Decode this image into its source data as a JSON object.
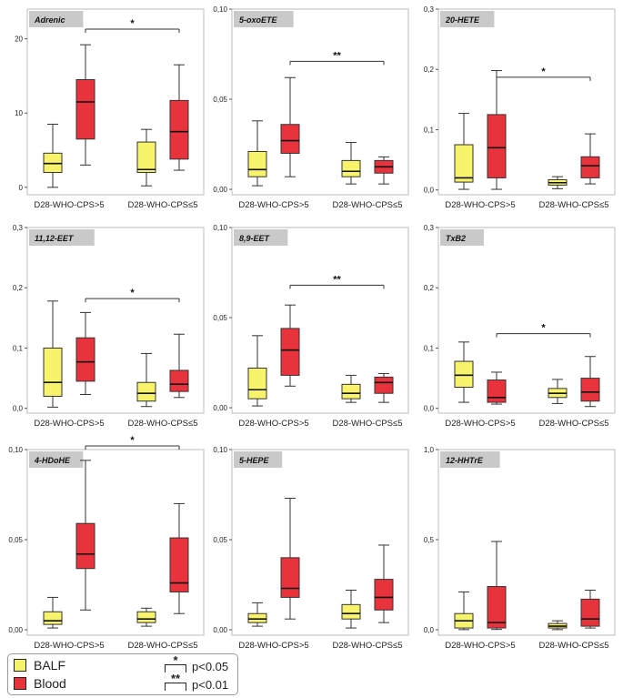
{
  "colors": {
    "balf": "#f7f36a",
    "blood": "#e8323c",
    "frame": "#bdbdbd",
    "tag": "#c9c9c9"
  },
  "legend": {
    "balf_label": "BALF",
    "blood_label": "Blood",
    "sig1_stars": "*",
    "sig1_label": "p<0.05",
    "sig2_stars": "**",
    "sig2_label": "p<0.01"
  },
  "chart_data": [
    {
      "type": "box",
      "title": "Adrenic",
      "categories": [
        "D28-WHO-CPS>5",
        "D28-WHO-CPS≤5"
      ],
      "ylim": [
        -1,
        24
      ],
      "yticks": [
        0,
        10,
        20
      ],
      "ytick_labels": [
        "0",
        "10",
        "20"
      ],
      "series": [
        {
          "name": "BALF",
          "boxes": [
            {
              "min": 0,
              "q1": 2,
              "median": 3.2,
              "q3": 4.6,
              "max": 8.5
            },
            {
              "min": 0.2,
              "q1": 2,
              "median": 2.4,
              "q3": 6.1,
              "max": 7.8
            }
          ]
        },
        {
          "name": "Blood",
          "boxes": [
            {
              "min": 3,
              "q1": 6.5,
              "median": 11.5,
              "q3": 14.5,
              "max": 19.2
            },
            {
              "min": 2.3,
              "q1": 3.8,
              "median": 7.5,
              "q3": 11.7,
              "max": 16.5
            }
          ]
        }
      ],
      "significance": [
        {
          "from": 1,
          "to": 3,
          "y": 21.3,
          "label": "*"
        }
      ]
    },
    {
      "type": "box",
      "title": "5-oxoETE",
      "categories": [
        "D28-WHO-CPS>5",
        "D28-WHO-CPS≤5"
      ],
      "ylim": [
        -0.003,
        0.1
      ],
      "yticks": [
        0,
        0.05,
        0.1
      ],
      "ytick_labels": [
        "0,00",
        "0,05",
        "0,10"
      ],
      "series": [
        {
          "name": "BALF",
          "boxes": [
            {
              "min": 0.002,
              "q1": 0.007,
              "median": 0.011,
              "q3": 0.021,
              "max": 0.038
            },
            {
              "min": 0.003,
              "q1": 0.007,
              "median": 0.01,
              "q3": 0.016,
              "max": 0.026
            }
          ]
        },
        {
          "name": "Blood",
          "boxes": [
            {
              "min": 0.007,
              "q1": 0.02,
              "median": 0.027,
              "q3": 0.036,
              "max": 0.062
            },
            {
              "min": 0.003,
              "q1": 0.009,
              "median": 0.0125,
              "q3": 0.016,
              "max": 0.018
            }
          ]
        }
      ],
      "significance": [
        {
          "from": 1,
          "to": 3,
          "y": 0.071,
          "label": "**"
        }
      ]
    },
    {
      "type": "box",
      "title": "20-HETE",
      "categories": [
        "D28-WHO-CPS>5",
        "D28-WHO-CPS≤5"
      ],
      "ylim": [
        -0.008,
        0.3
      ],
      "yticks": [
        0,
        0.1,
        0.2,
        0.3
      ],
      "ytick_labels": [
        "0,0",
        "0,1",
        "0,2",
        "0,3"
      ],
      "series": [
        {
          "name": "BALF",
          "boxes": [
            {
              "min": 0.001,
              "q1": 0.013,
              "median": 0.02,
              "q3": 0.075,
              "max": 0.127
            },
            {
              "min": 0.002,
              "q1": 0.008,
              "median": 0.012,
              "q3": 0.017,
              "max": 0.022
            }
          ]
        },
        {
          "name": "Blood",
          "boxes": [
            {
              "min": 0.001,
              "q1": 0.02,
              "median": 0.07,
              "q3": 0.125,
              "max": 0.198
            },
            {
              "min": 0.01,
              "q1": 0.02,
              "median": 0.04,
              "q3": 0.055,
              "max": 0.093
            }
          ]
        }
      ],
      "significance": [
        {
          "from": 1,
          "to": 3,
          "y": 0.187,
          "label": "*"
        }
      ]
    },
    {
      "type": "box",
      "title": "11,12-EET",
      "categories": [
        "D28-WHO-CPS>5",
        "D28-WHO-CPS≤5"
      ],
      "ylim": [
        -0.008,
        0.3
      ],
      "yticks": [
        0,
        0.1,
        0.2,
        0.3
      ],
      "ytick_labels": [
        "0,0",
        "0,1",
        "0,2",
        "0,3"
      ],
      "series": [
        {
          "name": "BALF",
          "boxes": [
            {
              "min": 0.002,
              "q1": 0.02,
              "median": 0.043,
              "q3": 0.1,
              "max": 0.178
            },
            {
              "min": 0.003,
              "q1": 0.012,
              "median": 0.025,
              "q3": 0.043,
              "max": 0.091
            }
          ]
        },
        {
          "name": "Blood",
          "boxes": [
            {
              "min": 0.023,
              "q1": 0.045,
              "median": 0.077,
              "q3": 0.117,
              "max": 0.159
            },
            {
              "min": 0.018,
              "q1": 0.028,
              "median": 0.04,
              "q3": 0.063,
              "max": 0.123
            }
          ]
        }
      ],
      "significance": [
        {
          "from": 1,
          "to": 3,
          "y": 0.182,
          "label": "*"
        }
      ]
    },
    {
      "type": "box",
      "title": "8,9-EET",
      "categories": [
        "D28-WHO-CPS>5",
        "D28-WHO-CPS≤5"
      ],
      "ylim": [
        -0.003,
        0.1
      ],
      "yticks": [
        0,
        0.05,
        0.1
      ],
      "ytick_labels": [
        "0,00",
        "0,05",
        "0,10"
      ],
      "series": [
        {
          "name": "BALF",
          "boxes": [
            {
              "min": 0.001,
              "q1": 0.005,
              "median": 0.01,
              "q3": 0.022,
              "max": 0.04
            },
            {
              "min": 0.003,
              "q1": 0.005,
              "median": 0.008,
              "q3": 0.013,
              "max": 0.018
            }
          ]
        },
        {
          "name": "Blood",
          "boxes": [
            {
              "min": 0.012,
              "q1": 0.018,
              "median": 0.032,
              "q3": 0.044,
              "max": 0.057
            },
            {
              "min": 0.003,
              "q1": 0.008,
              "median": 0.014,
              "q3": 0.017,
              "max": 0.019
            }
          ]
        }
      ],
      "significance": [
        {
          "from": 1,
          "to": 3,
          "y": 0.068,
          "label": "**"
        }
      ]
    },
    {
      "type": "box",
      "title": "TxB2",
      "categories": [
        "D28-WHO-CPS>5",
        "D28-WHO-CPS≤5"
      ],
      "ylim": [
        -0.008,
        0.3
      ],
      "yticks": [
        0,
        0.1,
        0.2,
        0.3
      ],
      "ytick_labels": [
        "0,0",
        "0,1",
        "0,2",
        "0,3"
      ],
      "series": [
        {
          "name": "BALF",
          "boxes": [
            {
              "min": 0.01,
              "q1": 0.035,
              "median": 0.055,
              "q3": 0.078,
              "max": 0.11
            },
            {
              "min": 0.008,
              "q1": 0.018,
              "median": 0.025,
              "q3": 0.033,
              "max": 0.048
            }
          ]
        },
        {
          "name": "Blood",
          "boxes": [
            {
              "min": 0.007,
              "q1": 0.01,
              "median": 0.018,
              "q3": 0.047,
              "max": 0.06
            },
            {
              "min": 0.003,
              "q1": 0.012,
              "median": 0.027,
              "q3": 0.05,
              "max": 0.086
            }
          ]
        }
      ],
      "significance": [
        {
          "from": 1,
          "to": 3,
          "y": 0.124,
          "label": "*"
        }
      ]
    },
    {
      "type": "box",
      "title": "4-HDoHE",
      "categories": [
        "D28-WHO-CPS>5",
        "D28-WHO-CPS≤5"
      ],
      "ylim": [
        -0.003,
        0.1
      ],
      "yticks": [
        0,
        0.05,
        0.1
      ],
      "ytick_labels": [
        "0,00",
        "0,05",
        "0,10"
      ],
      "series": [
        {
          "name": "BALF",
          "boxes": [
            {
              "min": 0.001,
              "q1": 0.003,
              "median": 0.005,
              "q3": 0.01,
              "max": 0.018
            },
            {
              "min": 0.002,
              "q1": 0.004,
              "median": 0.006,
              "q3": 0.01,
              "max": 0.012
            }
          ]
        },
        {
          "name": "Blood",
          "boxes": [
            {
              "min": 0.011,
              "q1": 0.034,
              "median": 0.042,
              "q3": 0.059,
              "max": 0.094
            },
            {
              "min": 0.009,
              "q1": 0.021,
              "median": 0.026,
              "q3": 0.051,
              "max": 0.07
            }
          ]
        }
      ],
      "significance": [
        {
          "from": 1,
          "to": 3,
          "y": 0.102,
          "label": "*"
        }
      ]
    },
    {
      "type": "box",
      "title": "5-HEPE",
      "categories": [
        "D28-WHO-CPS>5",
        "D28-WHO-CPS≤5"
      ],
      "ylim": [
        -0.003,
        0.1
      ],
      "yticks": [
        0,
        0.05,
        0.1
      ],
      "ytick_labels": [
        "0,00",
        "0,05",
        "0,10"
      ],
      "series": [
        {
          "name": "BALF",
          "boxes": [
            {
              "min": 0.002,
              "q1": 0.004,
              "median": 0.006,
              "q3": 0.009,
              "max": 0.015
            },
            {
              "min": 0.001,
              "q1": 0.006,
              "median": 0.009,
              "q3": 0.014,
              "max": 0.022
            }
          ]
        },
        {
          "name": "Blood",
          "boxes": [
            {
              "min": 0.006,
              "q1": 0.018,
              "median": 0.023,
              "q3": 0.04,
              "max": 0.073
            },
            {
              "min": 0.004,
              "q1": 0.011,
              "median": 0.018,
              "q3": 0.028,
              "max": 0.047
            }
          ]
        }
      ],
      "significance": []
    },
    {
      "type": "box",
      "title": "12-HHTrE",
      "categories": [
        "D28-WHO-CPS>5",
        "D28-WHO-CPS≤5"
      ],
      "ylim": [
        -0.03,
        1.0
      ],
      "yticks": [
        0,
        0.5,
        1.0
      ],
      "ytick_labels": [
        "0,0",
        "0,5",
        "1,0"
      ],
      "series": [
        {
          "name": "BALF",
          "boxes": [
            {
              "min": 0.001,
              "q1": 0.01,
              "median": 0.05,
              "q3": 0.09,
              "max": 0.21
            },
            {
              "min": 0.001,
              "q1": 0.01,
              "median": 0.02,
              "q3": 0.035,
              "max": 0.05
            }
          ]
        },
        {
          "name": "Blood",
          "boxes": [
            {
              "min": 0.002,
              "q1": 0.01,
              "median": 0.04,
              "q3": 0.24,
              "max": 0.49
            },
            {
              "min": 0.01,
              "q1": 0.02,
              "median": 0.06,
              "q3": 0.17,
              "max": 0.22
            }
          ]
        }
      ],
      "significance": []
    }
  ]
}
